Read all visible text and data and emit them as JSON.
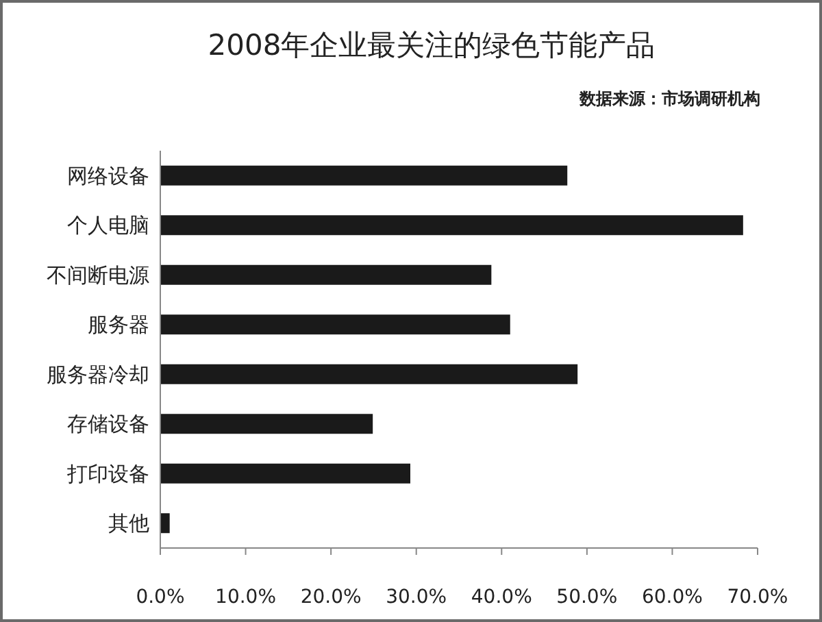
{
  "chart_data": {
    "type": "bar",
    "orientation": "horizontal",
    "title": "2008年企业最关注的绿色节能产品",
    "annotations": [
      "数据来源：市场调研机构"
    ],
    "categories": [
      "网络设备",
      "个人电脑",
      "不间断电源",
      "服务器",
      "服务器冷却",
      "存储设备",
      "打印设备",
      "其他"
    ],
    "values": [
      47.7,
      68.3,
      38.8,
      41.0,
      48.9,
      24.9,
      29.3,
      1.1
    ],
    "color": "#1a1a1a",
    "xlim": [
      0,
      70
    ],
    "xticks": [
      {
        "value": 0,
        "label": "0.0%"
      },
      {
        "value": 10,
        "label": "10.0%"
      },
      {
        "value": 20,
        "label": "20.0%"
      },
      {
        "value": 30,
        "label": "30.0%"
      },
      {
        "value": 40,
        "label": "40.0%"
      },
      {
        "value": 50,
        "label": "50.0%"
      },
      {
        "value": 60,
        "label": "60.0%"
      },
      {
        "value": 70,
        "label": "70.0%"
      }
    ]
  }
}
